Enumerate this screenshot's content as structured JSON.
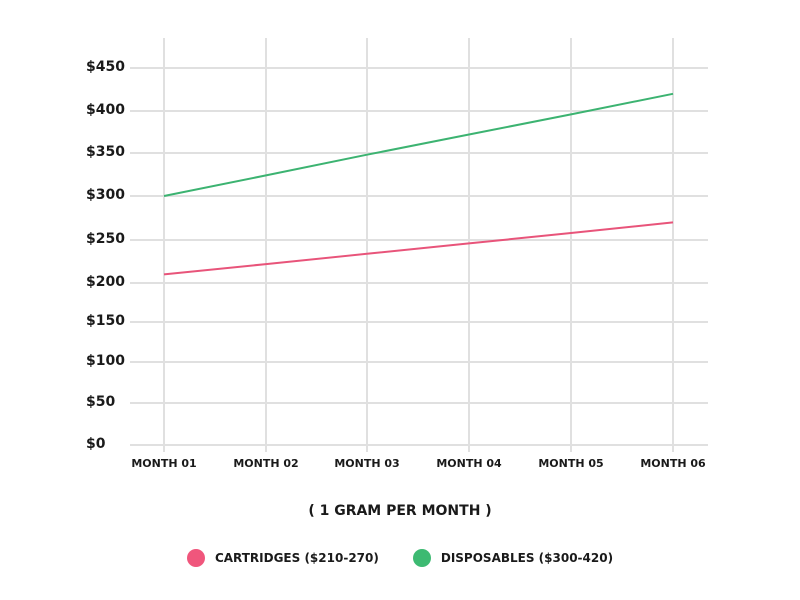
{
  "chart_data": {
    "type": "line",
    "title": "",
    "subtitle": "( 1 GRAM PER MONTH )",
    "xlabel": "( 1 GRAM PER MONTH )",
    "ylabel": "",
    "categories": [
      "MONTH 01",
      "MONTH 02",
      "MONTH 03",
      "MONTH 04",
      "MONTH 05",
      "MONTH 06"
    ],
    "y_ticks": [
      "$0",
      "$50",
      "$100",
      "$150",
      "$200",
      "$250",
      "$300",
      "$350",
      "$400",
      "$450"
    ],
    "ylim": [
      0,
      450
    ],
    "grid": true,
    "legend_position": "bottom",
    "series": [
      {
        "name": "CARTRIDGES ($210-270)",
        "color": "#e8547a",
        "values": [
          210,
          222,
          234,
          246,
          258,
          270
        ]
      },
      {
        "name": "DISPOSABLES ($300-420)",
        "color": "#3cb371",
        "values": [
          300,
          324,
          348,
          372,
          396,
          420
        ]
      }
    ]
  },
  "legend": {
    "items": [
      {
        "label": "CARTRIDGES ($210-270)",
        "color": "#f0567c"
      },
      {
        "label": "DISPOSABLES ($300-420)",
        "color": "#3dba72"
      }
    ]
  }
}
